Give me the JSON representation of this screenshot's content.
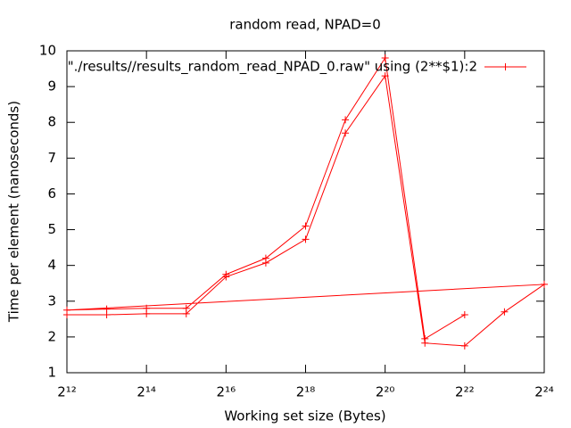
{
  "chart_data": {
    "type": "line",
    "title": "random read, NPAD=0",
    "x_label": "Working set size (Bytes)",
    "y_label": "Time per element (nanoseconds)",
    "x": [
      4096,
      8192,
      16384,
      32768,
      65536,
      131072,
      262144,
      524288,
      1048576,
      2097152,
      4194304,
      8388608,
      16777216,
      4096,
      8192,
      16384,
      32768,
      65536,
      131072,
      262144,
      524288,
      1048576,
      2097152,
      4194304
    ],
    "series": [
      {
        "name": "\"./results//results_random_read_NPAD_0.raw\" using (2**$1):2",
        "color": "#ff0000",
        "values": [
          2.62,
          2.62,
          2.65,
          2.65,
          3.68,
          4.07,
          4.73,
          7.7,
          9.3,
          1.83,
          1.75,
          2.7,
          3.47,
          2.75,
          2.78,
          2.8,
          2.8,
          3.75,
          4.2,
          5.1,
          8.07,
          9.8,
          1.95,
          2.62
        ]
      }
    ],
    "xscale": "log2",
    "xlim": [
      4096,
      16777216
    ],
    "xticks": [
      {
        "value": 4096,
        "label": "2¹²"
      },
      {
        "value": 16384,
        "label": "2¹⁴"
      },
      {
        "value": 65536,
        "label": "2¹⁶"
      },
      {
        "value": 262144,
        "label": "2¹⁸"
      },
      {
        "value": 1048576,
        "label": "2²⁰"
      },
      {
        "value": 4194304,
        "label": "2²²"
      },
      {
        "value": 16777216,
        "label": "2²⁴"
      }
    ],
    "ylim": [
      1,
      10
    ],
    "yticks": [
      1,
      2,
      3,
      4,
      5,
      6,
      7,
      8,
      9,
      10
    ],
    "grid": false,
    "legend": "top-right"
  }
}
